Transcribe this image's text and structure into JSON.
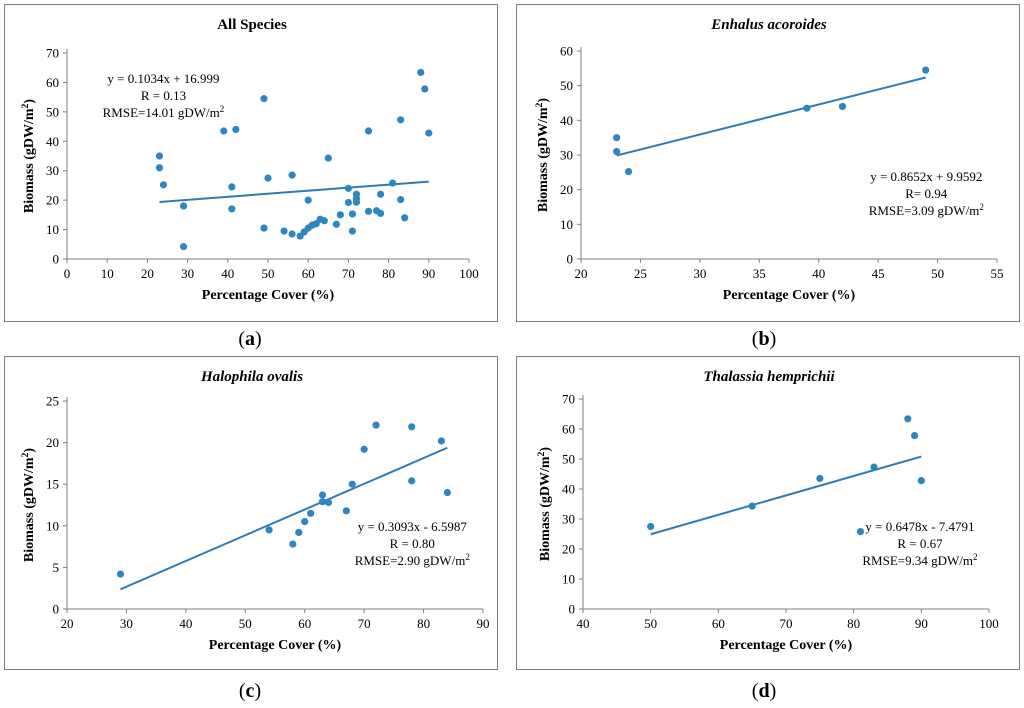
{
  "colors": {
    "point": "#2e86c1",
    "trend": "#2e7bb6",
    "axis": "#7f7f7f",
    "border": "#7f7f7f"
  },
  "captions": [
    "a",
    "b",
    "c",
    "d"
  ],
  "chart_data": [
    {
      "type": "scatter",
      "title": "All Species",
      "title_italic": false,
      "xlabel": "Percentage Cover (%)",
      "ylabel": "Biomass (gDW/m²)",
      "xlim": [
        0,
        100
      ],
      "xticks": [
        0,
        10,
        20,
        30,
        40,
        50,
        60,
        70,
        80,
        90,
        100
      ],
      "ylim": [
        0,
        70
      ],
      "yticks": [
        0,
        10,
        20,
        30,
        40,
        50,
        60,
        70
      ],
      "annotation": [
        "y = 0.1034x + 16.999",
        "R = 0.13",
        "RMSE=14.01 gDW/m²"
      ],
      "annotation_pos": "top-left",
      "trendline": {
        "x": [
          23,
          90
        ],
        "y": [
          19.38,
          26.31
        ]
      },
      "points": [
        [
          23,
          35
        ],
        [
          23,
          31
        ],
        [
          24,
          25.2
        ],
        [
          29,
          18
        ],
        [
          29,
          4.2
        ],
        [
          39,
          43.5
        ],
        [
          41,
          24.5
        ],
        [
          41,
          17
        ],
        [
          42,
          44
        ],
        [
          49,
          54.5
        ],
        [
          49,
          10.5
        ],
        [
          50,
          27.5
        ],
        [
          54,
          9.5
        ],
        [
          56,
          28.5
        ],
        [
          56,
          8.5
        ],
        [
          58,
          7.8
        ],
        [
          59,
          9.2
        ],
        [
          60,
          10.5
        ],
        [
          60,
          20
        ],
        [
          61,
          11.5
        ],
        [
          62,
          12
        ],
        [
          63,
          13.5
        ],
        [
          64,
          13
        ],
        [
          65,
          34.3
        ],
        [
          67,
          11.8
        ],
        [
          68,
          15
        ],
        [
          70,
          19.2
        ],
        [
          70,
          24
        ],
        [
          71,
          15.3
        ],
        [
          71,
          9.5
        ],
        [
          72,
          22
        ],
        [
          72,
          20.5
        ],
        [
          72,
          19.3
        ],
        [
          75,
          16.2
        ],
        [
          75,
          43.5
        ],
        [
          77,
          16.4
        ],
        [
          78,
          15.5
        ],
        [
          78,
          22
        ],
        [
          81,
          25.8
        ],
        [
          83,
          47.3
        ],
        [
          83,
          20.2
        ],
        [
          84,
          14
        ],
        [
          88,
          63.4
        ],
        [
          89,
          57.8
        ],
        [
          90,
          42.8
        ]
      ]
    },
    {
      "type": "scatter",
      "title": "Enhalus acoroides",
      "title_italic": true,
      "xlabel": "Percentage Cover (%)",
      "ylabel": "Biomass (gDW/m²)",
      "xlim": [
        20,
        55
      ],
      "xticks": [
        20,
        25,
        30,
        35,
        40,
        45,
        50,
        55
      ],
      "ylim": [
        0,
        60
      ],
      "yticks": [
        0,
        10,
        20,
        30,
        40,
        50,
        60
      ],
      "annotation": [
        "y = 0.8652x + 9.9592",
        "R= 0.94",
        "RMSE=3.09 gDW/m²"
      ],
      "annotation_pos": "bottom-right",
      "trendline": {
        "x": [
          23,
          49
        ],
        "y": [
          29.86,
          52.35
        ]
      },
      "points": [
        [
          23,
          35
        ],
        [
          23,
          31
        ],
        [
          24,
          25.2
        ],
        [
          39,
          43.5
        ],
        [
          42,
          44
        ],
        [
          49,
          54.5
        ]
      ]
    },
    {
      "type": "scatter",
      "title": "Halophila ovalis",
      "title_italic": true,
      "xlabel": "Percentage Cover (%)",
      "ylabel": "Biomass (gDW/m²)",
      "xlim": [
        20,
        90
      ],
      "xticks": [
        20,
        30,
        40,
        50,
        60,
        70,
        80,
        90
      ],
      "ylim": [
        0,
        25
      ],
      "yticks": [
        0,
        5,
        10,
        15,
        20,
        25
      ],
      "annotation": [
        "y = 0.3093x - 6.5987",
        "R = 0.80",
        "RMSE=2.90 gDW/m²"
      ],
      "annotation_pos": "bottom-right",
      "trendline": {
        "x": [
          29,
          84
        ],
        "y": [
          2.37,
          19.38
        ]
      },
      "points": [
        [
          29,
          4.2
        ],
        [
          54,
          9.5
        ],
        [
          58,
          7.8
        ],
        [
          59,
          9.2
        ],
        [
          60,
          10.5
        ],
        [
          61,
          11.5
        ],
        [
          63,
          13.7
        ],
        [
          63,
          12.9
        ],
        [
          64,
          12.8
        ],
        [
          67,
          11.8
        ],
        [
          68,
          15
        ],
        [
          70,
          19.2
        ],
        [
          72,
          22.1
        ],
        [
          78,
          21.9
        ],
        [
          78,
          15.4
        ],
        [
          83,
          20.2
        ],
        [
          84,
          14
        ]
      ]
    },
    {
      "type": "scatter",
      "title": "Thalassia hemprichii",
      "title_italic": true,
      "xlabel": "Percentage Cover (%)",
      "ylabel": "Biomass (gDW/m²)",
      "xlim": [
        40,
        100
      ],
      "xticks": [
        40,
        50,
        60,
        70,
        80,
        90,
        100
      ],
      "ylim": [
        0,
        70
      ],
      "yticks": [
        0,
        10,
        20,
        30,
        40,
        50,
        60,
        70
      ],
      "annotation": [
        "y = 0.6478x - 7.4791",
        "R = 0.67",
        "RMSE=9.34 gDW/m²"
      ],
      "annotation_pos": "bottom-right",
      "trendline": {
        "x": [
          50,
          90
        ],
        "y": [
          24.91,
          50.82
        ]
      },
      "points": [
        [
          50,
          27.5
        ],
        [
          65,
          34.3
        ],
        [
          75,
          43.5
        ],
        [
          81,
          25.8
        ],
        [
          83,
          47.3
        ],
        [
          88,
          63.4
        ],
        [
          89,
          57.8
        ],
        [
          90,
          42.8
        ]
      ]
    }
  ]
}
